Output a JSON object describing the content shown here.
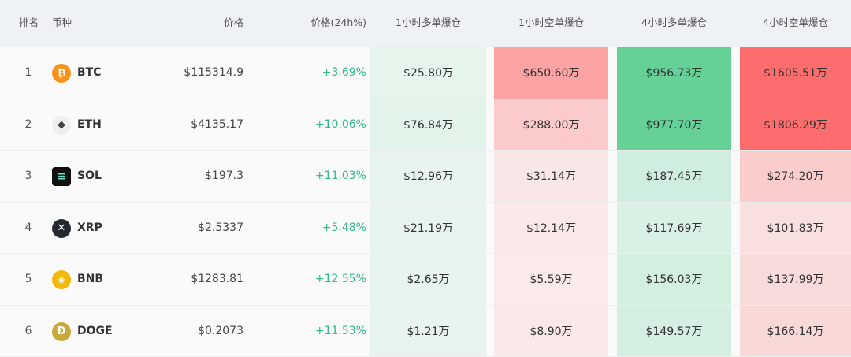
{
  "headers": [
    "排名",
    "币种",
    "价格",
    "价格(24h%)",
    "1小时多单爆仓",
    "1小时空单爆仓",
    "4小时多单爆仓",
    "4小时空单爆仓"
  ],
  "rows": [
    {
      "rank": "1",
      "symbol": "BTC",
      "icon": "bitcoin-icon",
      "price": "$115314.9",
      "change": "+3.69%",
      "cells": [
        "$25.80万",
        "$650.60万",
        "$956.73万",
        "$1605.51万"
      ],
      "colors": [
        "#e6f5ec",
        "#fca3a3",
        "#65d197",
        "#fd6d6d"
      ]
    },
    {
      "rank": "2",
      "symbol": "ETH",
      "icon": "ethereum-icon",
      "price": "$4135.17",
      "change": "+10.06%",
      "cells": [
        "$76.84万",
        "$288.00万",
        "$977.70万",
        "$1806.29万"
      ],
      "colors": [
        "#e2f4ea",
        "#fbcaca",
        "#65d197",
        "#fd6d6d"
      ]
    },
    {
      "rank": "3",
      "symbol": "SOL",
      "icon": "solana-icon",
      "price": "$197.3",
      "change": "+11.03%",
      "cells": [
        "$12.96万",
        "$31.14万",
        "$187.45万",
        "$274.20万"
      ],
      "colors": [
        "#e8f5ee",
        "#f9e6e6",
        "#d0eedf",
        "#fbcccc"
      ]
    },
    {
      "rank": "4",
      "symbol": "XRP",
      "icon": "xrp-icon",
      "price": "$2.5337",
      "change": "+5.48%",
      "cells": [
        "$21.19万",
        "$12.14万",
        "$117.69万",
        "$101.83万"
      ],
      "colors": [
        "#e8f5ee",
        "#fbe9e9",
        "#d8f1e4",
        "#f9e0e0"
      ]
    },
    {
      "rank": "5",
      "symbol": "BNB",
      "icon": "bnb-icon",
      "price": "$1283.81",
      "change": "+12.55%",
      "cells": [
        "$2.65万",
        "$5.59万",
        "$156.03万",
        "$137.99万"
      ],
      "colors": [
        "#e8f5ee",
        "#fbeaea",
        "#d3efe0",
        "#f9dbdb"
      ]
    },
    {
      "rank": "6",
      "symbol": "DOGE",
      "icon": "dogecoin-icon",
      "price": "$0.2073",
      "change": "+11.53%",
      "cells": [
        "$1.21万",
        "$8.90万",
        "$149.57万",
        "$166.14万"
      ],
      "colors": [
        "#e8f5ee",
        "#fbe9e9",
        "#d4efe1",
        "#f9d8d8"
      ]
    }
  ],
  "colors": {
    "positive": "#2fb889",
    "header_bg": "#eef2f6"
  }
}
